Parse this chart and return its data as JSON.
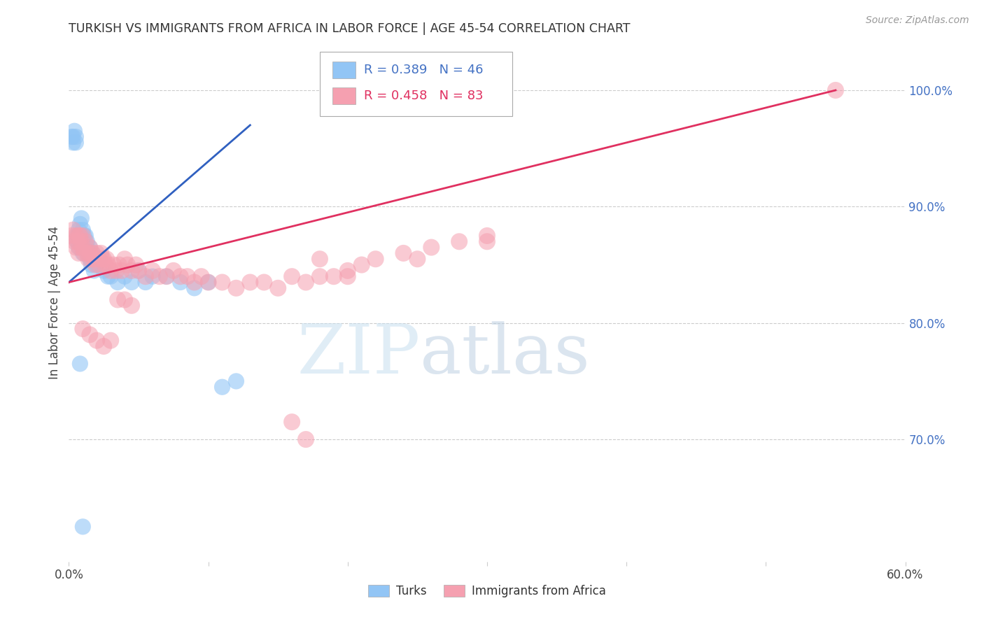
{
  "title": "TURKISH VS IMMIGRANTS FROM AFRICA IN LABOR FORCE | AGE 45-54 CORRELATION CHART",
  "source": "Source: ZipAtlas.com",
  "ylabel": "In Labor Force | Age 45-54",
  "xlim": [
    0.0,
    0.6
  ],
  "ylim": [
    0.595,
    1.04
  ],
  "xticks": [
    0.0,
    0.1,
    0.2,
    0.3,
    0.4,
    0.5,
    0.6
  ],
  "xticklabels": [
    "0.0%",
    "",
    "",
    "",
    "",
    "",
    "60.0%"
  ],
  "yticks_right": [
    0.7,
    0.8,
    0.9,
    1.0
  ],
  "ytick_right_labels": [
    "70.0%",
    "80.0%",
    "90.0%",
    "100.0%"
  ],
  "grid_color": "#cccccc",
  "background_color": "#ffffff",
  "turks_color": "#92c5f5",
  "africa_color": "#f5a0b0",
  "turks_line_color": "#3060c0",
  "africa_line_color": "#e03060",
  "legend_turks_R": "0.389",
  "legend_turks_N": "46",
  "legend_africa_R": "0.458",
  "legend_africa_N": "83",
  "watermark_zip": "ZIP",
  "watermark_atlas": "atlas",
  "turks_scatter_x": [
    0.002,
    0.003,
    0.003,
    0.004,
    0.005,
    0.005,
    0.006,
    0.006,
    0.007,
    0.007,
    0.008,
    0.008,
    0.009,
    0.009,
    0.01,
    0.01,
    0.011,
    0.011,
    0.012,
    0.013,
    0.013,
    0.014,
    0.015,
    0.015,
    0.016,
    0.017,
    0.018,
    0.02,
    0.022,
    0.025,
    0.028,
    0.03,
    0.035,
    0.04,
    0.045,
    0.05,
    0.055,
    0.06,
    0.07,
    0.08,
    0.09,
    0.1,
    0.11,
    0.12,
    0.008,
    0.01
  ],
  "turks_scatter_y": [
    0.96,
    0.96,
    0.955,
    0.965,
    0.96,
    0.955,
    0.875,
    0.87,
    0.88,
    0.865,
    0.885,
    0.875,
    0.87,
    0.89,
    0.86,
    0.88,
    0.875,
    0.865,
    0.875,
    0.865,
    0.87,
    0.86,
    0.855,
    0.865,
    0.85,
    0.86,
    0.845,
    0.85,
    0.855,
    0.845,
    0.84,
    0.84,
    0.835,
    0.84,
    0.835,
    0.845,
    0.835,
    0.84,
    0.84,
    0.835,
    0.83,
    0.835,
    0.745,
    0.75,
    0.765,
    0.625
  ],
  "africa_scatter_x": [
    0.002,
    0.003,
    0.004,
    0.005,
    0.005,
    0.006,
    0.007,
    0.007,
    0.008,
    0.008,
    0.009,
    0.01,
    0.01,
    0.011,
    0.012,
    0.013,
    0.014,
    0.015,
    0.015,
    0.016,
    0.017,
    0.018,
    0.019,
    0.02,
    0.021,
    0.022,
    0.023,
    0.024,
    0.025,
    0.026,
    0.027,
    0.028,
    0.03,
    0.032,
    0.034,
    0.036,
    0.038,
    0.04,
    0.042,
    0.045,
    0.048,
    0.05,
    0.055,
    0.06,
    0.065,
    0.07,
    0.075,
    0.08,
    0.085,
    0.09,
    0.095,
    0.1,
    0.11,
    0.12,
    0.13,
    0.14,
    0.15,
    0.16,
    0.17,
    0.18,
    0.19,
    0.2,
    0.21,
    0.22,
    0.24,
    0.26,
    0.28,
    0.3,
    0.01,
    0.015,
    0.02,
    0.025,
    0.03,
    0.2,
    0.25,
    0.18,
    0.3,
    0.55,
    0.16,
    0.17,
    0.035,
    0.04,
    0.045
  ],
  "africa_scatter_y": [
    0.875,
    0.88,
    0.87,
    0.865,
    0.875,
    0.87,
    0.875,
    0.86,
    0.865,
    0.875,
    0.87,
    0.865,
    0.875,
    0.86,
    0.87,
    0.86,
    0.855,
    0.86,
    0.865,
    0.855,
    0.86,
    0.855,
    0.85,
    0.86,
    0.855,
    0.85,
    0.86,
    0.855,
    0.855,
    0.85,
    0.855,
    0.85,
    0.845,
    0.85,
    0.845,
    0.85,
    0.845,
    0.855,
    0.85,
    0.845,
    0.85,
    0.845,
    0.84,
    0.845,
    0.84,
    0.84,
    0.845,
    0.84,
    0.84,
    0.835,
    0.84,
    0.835,
    0.835,
    0.83,
    0.835,
    0.835,
    0.83,
    0.84,
    0.835,
    0.84,
    0.84,
    0.845,
    0.85,
    0.855,
    0.86,
    0.865,
    0.87,
    0.875,
    0.795,
    0.79,
    0.785,
    0.78,
    0.785,
    0.84,
    0.855,
    0.855,
    0.87,
    1.0,
    0.715,
    0.7,
    0.82,
    0.82,
    0.815
  ]
}
